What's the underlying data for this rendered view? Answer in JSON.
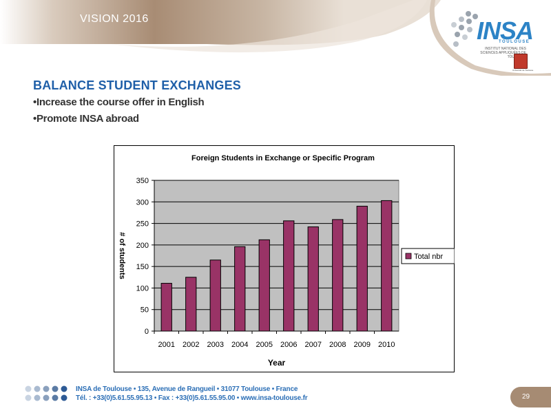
{
  "header": {
    "title": "VISION 2016"
  },
  "logo": {
    "word": "INSA",
    "city": "TOULOUSE",
    "subtitle": "INSTITUT NATIONAL DES SCIENCES APPLIQUÉES DE TOULOUSE",
    "crest_text": "Université de Toulouse"
  },
  "content": {
    "heading": "BALANCE STUDENT EXCHANGES",
    "bullets": [
      "•Increase the course offer in English",
      "•Promote INSA abroad"
    ]
  },
  "chart_data": {
    "type": "bar",
    "title": "Foreign Students in Exchange or Specific Program",
    "xlabel": "Year",
    "ylabel": "# of students",
    "categories": [
      "2001",
      "2002",
      "2003",
      "2004",
      "2005",
      "2006",
      "2007",
      "2008",
      "2009",
      "2010"
    ],
    "series": [
      {
        "name": "Total nbr",
        "values": [
          111,
          125,
          165,
          196,
          212,
          256,
          242,
          259,
          290,
          303
        ]
      }
    ],
    "ylim": [
      0,
      350
    ],
    "yticks": [
      0,
      50,
      100,
      150,
      200,
      250,
      300,
      350
    ],
    "grid": true,
    "legend": "right",
    "colors": {
      "bar": "#993366",
      "plot_bg": "#c0c0c0"
    }
  },
  "footer": {
    "line1": "INSA de Toulouse • 135, Avenue de Rangueil • 31077 Toulouse • France",
    "line2": "Tél. : +33(0)5.61.55.95.13 • Fax : +33(0)5.61.55.95.00 • www.insa-toulouse.fr",
    "page_number": "29"
  }
}
